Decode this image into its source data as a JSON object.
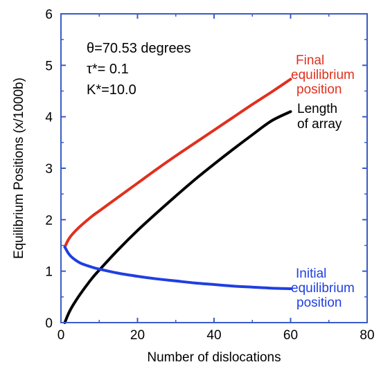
{
  "chart_data": {
    "type": "line",
    "title": "",
    "xlabel": "Number of dislocations",
    "ylabel": "Equilibrium Positions (x/1000b)",
    "xlim": [
      0,
      80
    ],
    "ylim": [
      0,
      6
    ],
    "xticks": [
      "0",
      "20",
      "40",
      "60",
      "80"
    ],
    "yticks": [
      "0",
      "1",
      "2",
      "3",
      "4",
      "5",
      "6"
    ],
    "grid": false,
    "frame_color": "#3a5bc7",
    "parameters": {
      "theta": "θ=70.53 degrees",
      "tau": "τ*= 0.1",
      "k": "K*=10.0"
    },
    "series": [
      {
        "key": "final",
        "label_lines": [
          "Final",
          "equilibrium",
          "position"
        ],
        "color": "#e0301e",
        "x": [
          1,
          2,
          3,
          5,
          8,
          10,
          15,
          20,
          25,
          30,
          35,
          40,
          45,
          50,
          55,
          60
        ],
        "y": [
          1.47,
          1.62,
          1.72,
          1.87,
          2.06,
          2.17,
          2.44,
          2.71,
          2.98,
          3.24,
          3.49,
          3.74,
          3.99,
          4.24,
          4.48,
          4.73
        ]
      },
      {
        "key": "length",
        "label_lines": [
          "Length",
          "of array"
        ],
        "color": "#000000",
        "x": [
          1,
          2,
          3,
          5,
          8,
          10,
          15,
          20,
          25,
          30,
          35,
          40,
          45,
          50,
          55,
          60
        ],
        "y": [
          0.0,
          0.18,
          0.32,
          0.55,
          0.85,
          1.02,
          1.42,
          1.79,
          2.13,
          2.46,
          2.78,
          3.08,
          3.37,
          3.65,
          3.92,
          4.1
        ]
      },
      {
        "key": "initial",
        "label_lines": [
          "Initial",
          "equilibrium",
          "position"
        ],
        "color": "#1f3fe0",
        "x": [
          1,
          2,
          3,
          5,
          8,
          10,
          15,
          20,
          25,
          30,
          35,
          40,
          45,
          50,
          55,
          60
        ],
        "y": [
          1.47,
          1.34,
          1.26,
          1.16,
          1.08,
          1.04,
          0.96,
          0.9,
          0.85,
          0.81,
          0.77,
          0.74,
          0.71,
          0.69,
          0.67,
          0.66
        ]
      }
    ]
  }
}
